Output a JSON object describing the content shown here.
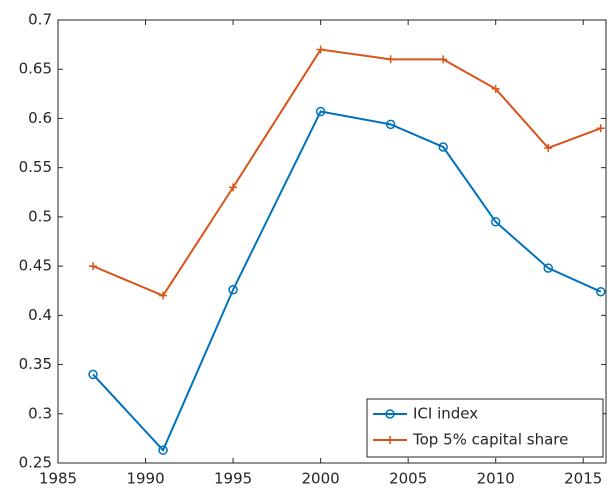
{
  "chart_data": {
    "type": "line",
    "x": [
      1987,
      1991,
      1995,
      2000,
      2004,
      2007,
      2010,
      2013,
      2016
    ],
    "series": [
      {
        "name": "ICI index",
        "color": "#0072bd",
        "marker": "circle",
        "values": [
          0.34,
          0.263,
          0.426,
          0.607,
          0.594,
          0.571,
          0.495,
          0.448,
          0.424
        ]
      },
      {
        "name": "Top 5% capital share",
        "color": "#d95319",
        "marker": "plus",
        "values": [
          0.45,
          0.42,
          0.53,
          0.67,
          0.66,
          0.66,
          0.63,
          0.57,
          0.59
        ]
      }
    ],
    "xlim": [
      1985,
      2016.3
    ],
    "xticks": [
      1985,
      1990,
      1995,
      2000,
      2005,
      2010,
      2015
    ],
    "ylim": [
      0.25,
      0.7
    ],
    "yticks": [
      0.25,
      0.3,
      0.35,
      0.4,
      0.45,
      0.5,
      0.55,
      0.6,
      0.65,
      0.7
    ],
    "legend": "lower right",
    "grid": false
  }
}
